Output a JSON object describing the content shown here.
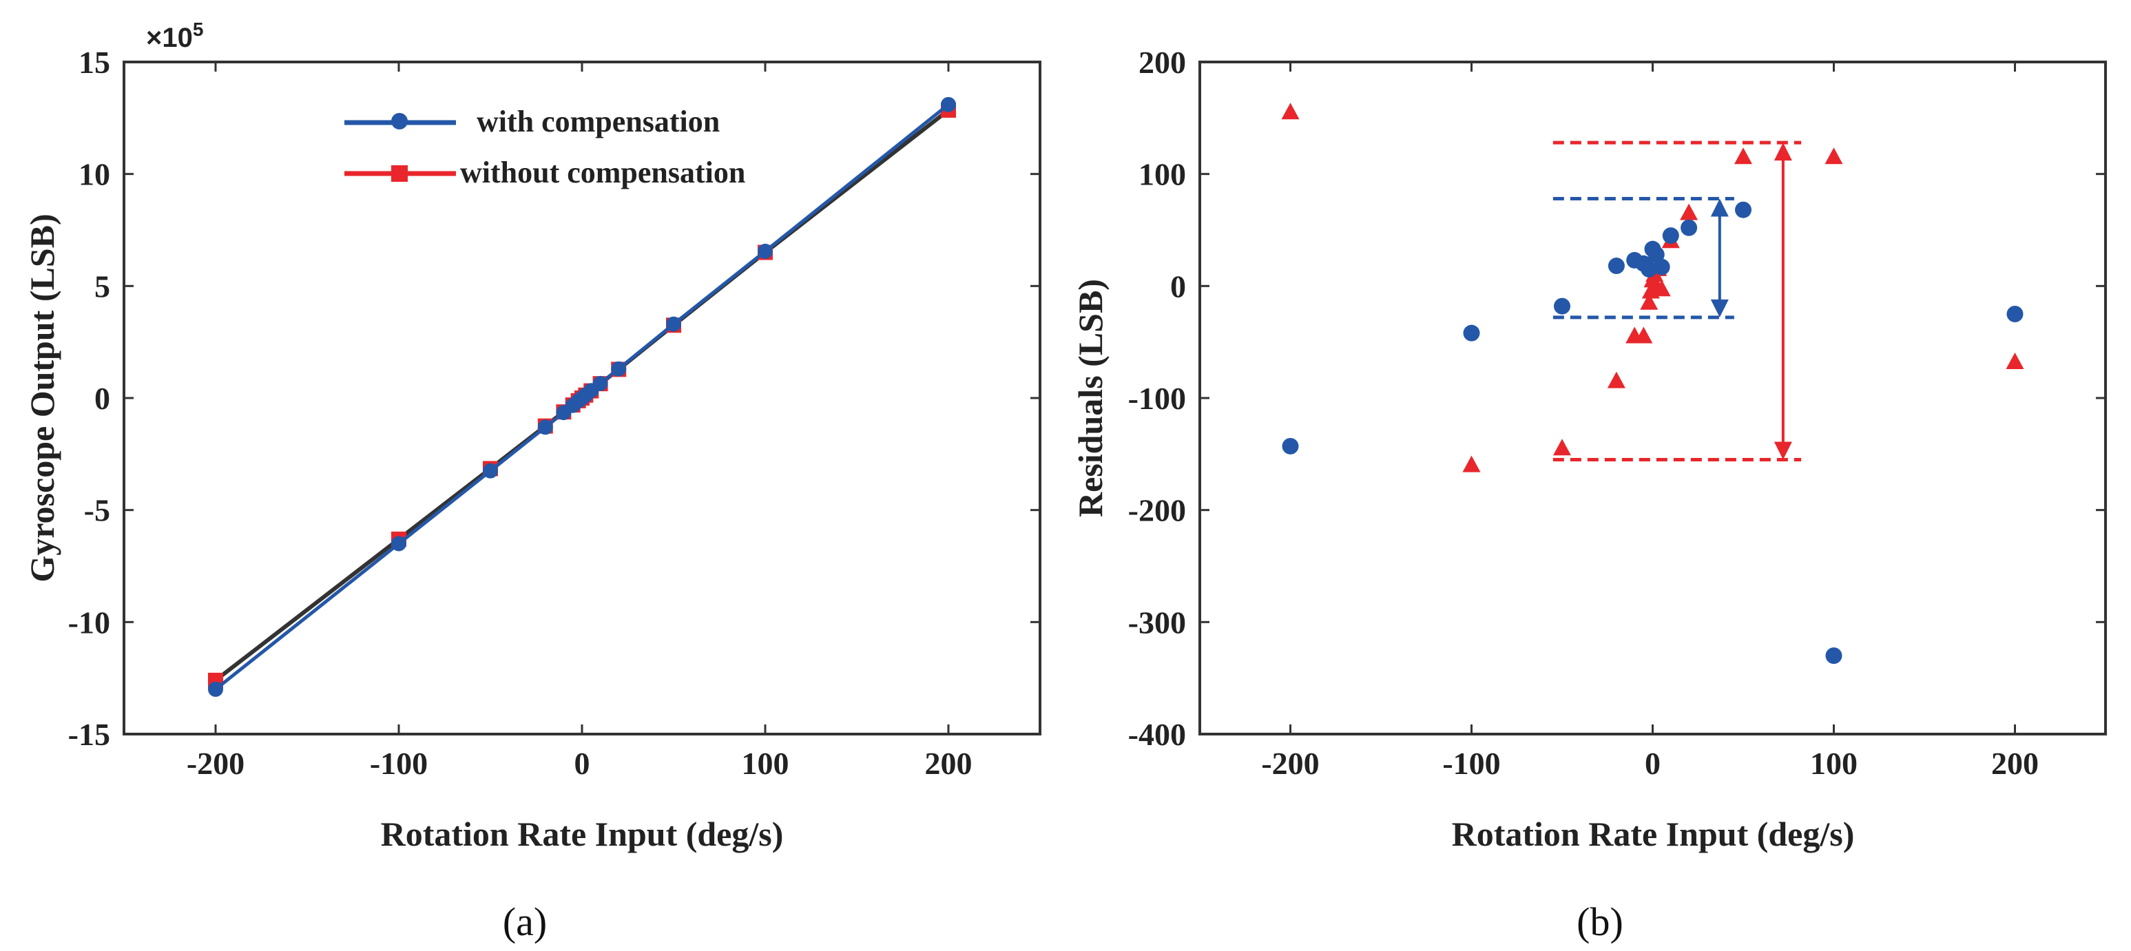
{
  "colors": {
    "blue": "#2457a8",
    "red": "#e8262b",
    "dark": "#333333"
  },
  "chart_data": [
    {
      "type": "line",
      "panel_label": "(a)",
      "xlabel": "Rotation Rate Input (deg/s)",
      "ylabel": "Gyroscope Output (LSB)",
      "multiplier": "×10",
      "multiplier_exp": "5",
      "xlim": [
        -250,
        250
      ],
      "ylim": [
        -15,
        15
      ],
      "xticks": [
        -200,
        -100,
        0,
        100,
        200
      ],
      "yticks": [
        -15,
        -10,
        -5,
        0,
        5,
        10,
        15
      ],
      "xtick_labels": [
        "-200",
        "-100",
        "0",
        "100",
        "200"
      ],
      "ytick_labels": [
        "-15",
        "-10",
        "-5",
        "0",
        "5",
        "10",
        "15"
      ],
      "series": [
        {
          "name": "with compensation",
          "color": "#2457a8",
          "marker": "circle",
          "x": [
            -200,
            -100,
            -50,
            -20,
            -10,
            -5,
            -2,
            0,
            2,
            5,
            10,
            20,
            50,
            100,
            200
          ],
          "y": [
            -13.0,
            -6.5,
            -3.25,
            -1.3,
            -0.65,
            -0.33,
            -0.13,
            0,
            0.13,
            0.33,
            0.65,
            1.3,
            3.3,
            6.55,
            13.1
          ]
        },
        {
          "name": "without compensation",
          "color": "#e8262b",
          "marker": "square",
          "x": [
            -200,
            -100,
            -50,
            -20,
            -10,
            -5,
            -2,
            0,
            2,
            5,
            10,
            20,
            50,
            100,
            200
          ],
          "y": [
            -12.6,
            -6.3,
            -3.15,
            -1.25,
            -0.62,
            -0.31,
            -0.12,
            0,
            0.13,
            0.32,
            0.64,
            1.28,
            3.25,
            6.5,
            12.85
          ]
        }
      ]
    },
    {
      "type": "scatter",
      "panel_label": "(b)",
      "xlabel": "Rotation Rate Input (deg/s)",
      "ylabel": "Residuals (LSB)",
      "xlim": [
        -250,
        250
      ],
      "ylim": [
        -400,
        200
      ],
      "xticks": [
        -200,
        -100,
        0,
        100,
        200
      ],
      "yticks": [
        -400,
        -300,
        -200,
        -100,
        0,
        100,
        200
      ],
      "xtick_labels": [
        "-200",
        "-100",
        "0",
        "100",
        "200"
      ],
      "ytick_labels": [
        "-400",
        "-300",
        "-200",
        "-100",
        "0",
        "100",
        "200"
      ],
      "series": [
        {
          "name": "with compensation",
          "color": "#2457a8",
          "marker": "circle",
          "x": [
            -200,
            -100,
            -50,
            -20,
            -10,
            -5,
            -2,
            0,
            2,
            5,
            10,
            20,
            50,
            100,
            200
          ],
          "y": [
            -143,
            -42,
            -18,
            18,
            23,
            20,
            15,
            33,
            28,
            17,
            45,
            52,
            68,
            -330,
            -25
          ]
        },
        {
          "name": "without compensation",
          "color": "#e8262b",
          "marker": "triangle",
          "x": [
            -200,
            -100,
            -50,
            -20,
            -10,
            -5,
            -2,
            -1,
            0,
            1,
            2,
            3,
            5,
            10,
            20,
            50,
            100,
            200
          ],
          "y": [
            155,
            -160,
            -145,
            -85,
            -45,
            -45,
            -15,
            -5,
            5,
            10,
            0,
            15,
            -3,
            40,
            65,
            115,
            115,
            -68
          ]
        }
      ],
      "annotations": {
        "blue_band": {
          "x_start": -55,
          "x_end": 45,
          "upper": 78,
          "lower": -28,
          "arrow_x": 37
        },
        "red_band": {
          "x_start": -55,
          "x_end": 82,
          "upper": 128,
          "lower": -155,
          "arrow_x": 72
        }
      }
    }
  ]
}
